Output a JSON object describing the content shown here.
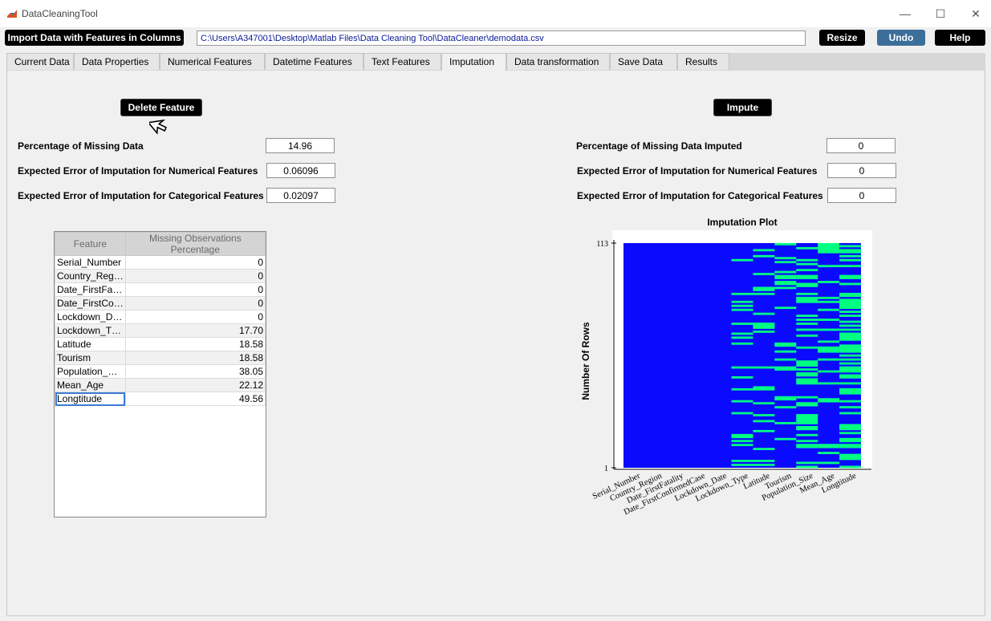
{
  "window": {
    "title": "DataCleaningTool",
    "minimize": "—",
    "maximize": "☐",
    "close": "✕"
  },
  "toolbar": {
    "import_label": "Import Data with Features in Columns",
    "path": "C:\\Users\\A347001\\Desktop\\Matlab Files\\Data Cleaning Tool\\DataCleaner\\demodata.csv",
    "resize_label": "Resize",
    "undo_label": "Undo",
    "help_label": "Help"
  },
  "tabs": [
    "Current Data",
    "Data Properties",
    "Numerical Features",
    "Datetime Features",
    "Text Features",
    "Imputation",
    "Data transformation",
    "Save Data",
    "Results"
  ],
  "active_tab": "Imputation",
  "left": {
    "delete_label": "Delete Feature",
    "missing_label": "Percentage of Missing Data",
    "missing_value": "14.96",
    "num_err_label": "Expected Error of Imputation for Numerical Features",
    "num_err_value": "0.06096",
    "cat_err_label": "Expected Error of Imputation for Categorical Features",
    "cat_err_value": "0.02097"
  },
  "right": {
    "impute_label": "Impute",
    "imputed_label": "Percentage of Missing Data Imputed",
    "imputed_value": "0",
    "num_err_label": "Expected Error of Imputation for Numerical Features",
    "num_err_value": "0",
    "cat_err_label": "Expected Error of Imputation for Categorical Features",
    "cat_err_value": "0"
  },
  "table": {
    "headers": [
      "Feature",
      "Missing Observations Percentage"
    ],
    "rows": [
      [
        "Serial_Number",
        "0"
      ],
      [
        "Country_Reg…",
        "0"
      ],
      [
        "Date_FirstFa…",
        "0"
      ],
      [
        "Date_FirstCo…",
        "0"
      ],
      [
        "Lockdown_D…",
        "0"
      ],
      [
        "Lockdown_T…",
        "17.70"
      ],
      [
        "Latitude",
        "18.58"
      ],
      [
        "Tourism",
        "18.58"
      ],
      [
        "Population_…",
        "38.05"
      ],
      [
        "Mean_Age",
        "22.12"
      ],
      [
        "Longtitude",
        "49.56"
      ]
    ]
  },
  "chart_data": {
    "type": "heatmap",
    "title": "Imputation Plot",
    "ylabel": "Number Of Rows",
    "xlabel": "",
    "ylim": [
      1,
      113
    ],
    "yticks": [
      "113",
      "1"
    ],
    "categories": [
      "Serial_Number",
      "Country_Region",
      "Date_FirstFatality",
      "Date_FirstConfirmedCase",
      "Lockdown_Date",
      "Lockdown_Type",
      "Latitude",
      "Tourism",
      "Population_Size",
      "Mean_Age",
      "Longtitude"
    ],
    "missing_percent": [
      0,
      0,
      0,
      0,
      0,
      17.7,
      18.58,
      18.58,
      38.05,
      22.12,
      49.56
    ],
    "colors": {
      "present": "#0a0aff",
      "missing": "#00ff80"
    }
  }
}
